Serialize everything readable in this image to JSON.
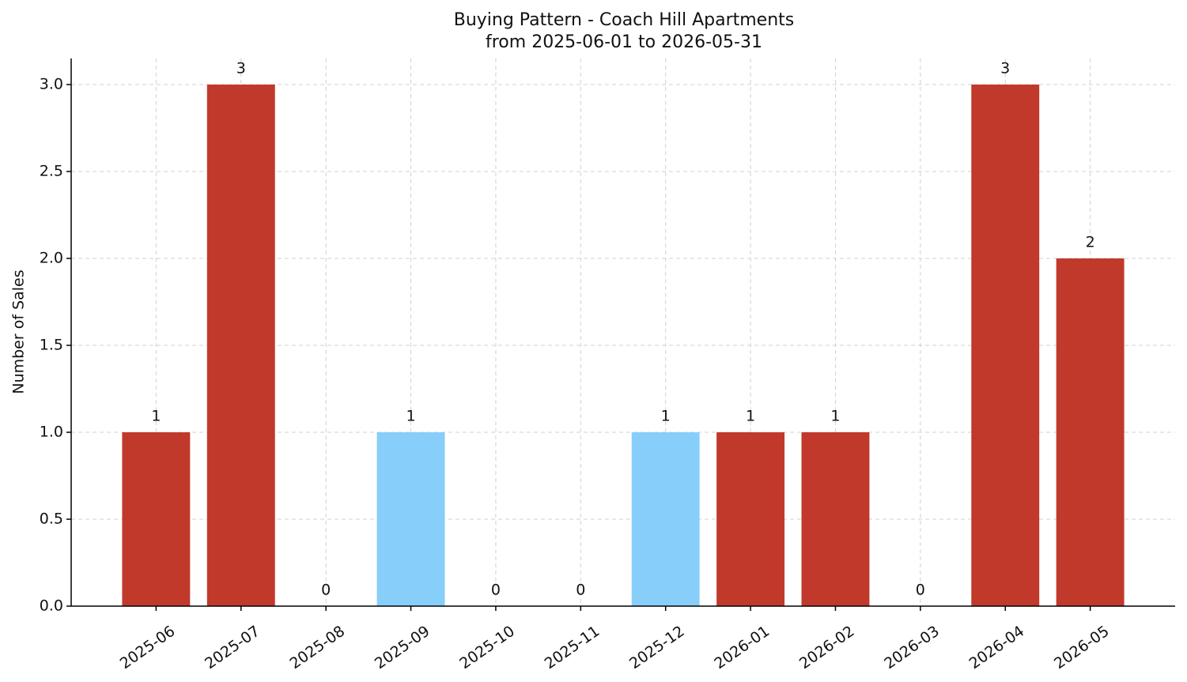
{
  "chart_data": {
    "type": "bar",
    "title": "Buying Pattern - Coach Hill Apartments",
    "subtitle": "from 2025-06-01 to 2026-05-31",
    "y_label": "Number of Sales",
    "categories": [
      "2025-06",
      "2025-07",
      "2025-08",
      "2025-09",
      "2025-10",
      "2025-11",
      "2025-12",
      "2026-01",
      "2026-02",
      "2026-03",
      "2026-04",
      "2026-05"
    ],
    "values": [
      1,
      3,
      0,
      1,
      0,
      0,
      1,
      1,
      1,
      0,
      3,
      2
    ],
    "colors": [
      "#c0392b",
      "#c0392b",
      "#c0392b",
      "#87cefa",
      "#c0392b",
      "#c0392b",
      "#87cefa",
      "#c0392b",
      "#c0392b",
      "#c0392b",
      "#c0392b",
      "#c0392b"
    ],
    "ylim": [
      0,
      3.15
    ],
    "yticks": [
      {
        "value": 0,
        "label": "0.0"
      },
      {
        "value": 0.5,
        "label": "0.5"
      },
      {
        "value": 1,
        "label": "1.0"
      },
      {
        "value": 1.5,
        "label": "1.5"
      },
      {
        "value": 2,
        "label": "2.0"
      },
      {
        "value": 2.5,
        "label": "2.5"
      },
      {
        "value": 3,
        "label": "3.0"
      }
    ],
    "grid": true
  }
}
